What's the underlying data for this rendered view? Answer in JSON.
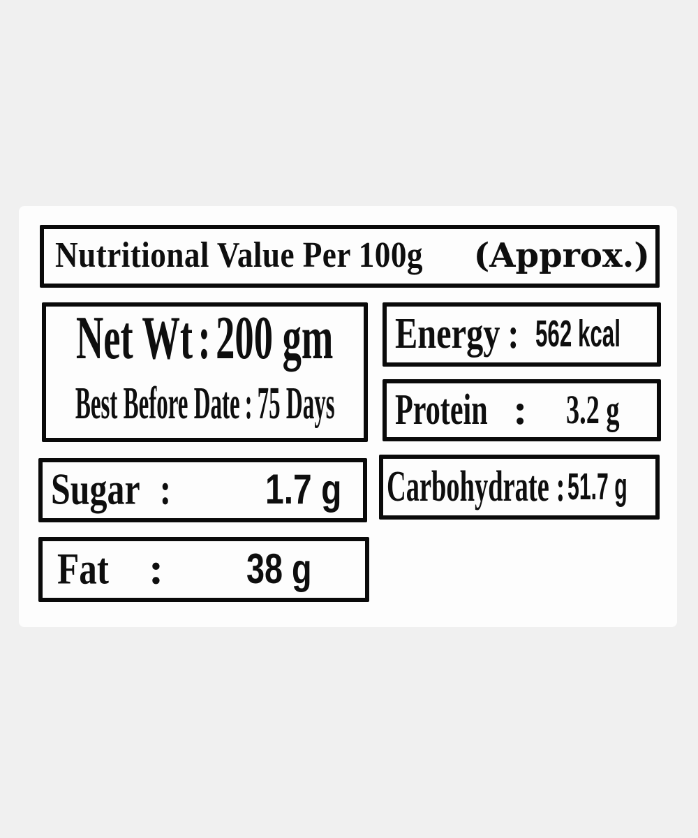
{
  "page": {
    "background_color": "#f0f0f0",
    "card_color": "#fdfdfd",
    "line_color": "#0a0a0a",
    "text_color": "#0e0e0e"
  },
  "header": {
    "title": "Nutritional Value Per 100g",
    "approx": "(Approx.)"
  },
  "symbols": {
    "colon": ":"
  },
  "product": {
    "net_wt_label": "Net Wt",
    "net_wt_value": "200 gm",
    "best_before_label": "Best Before Date",
    "best_before_value": "75 Days"
  },
  "nutrients": {
    "energy": {
      "label": "Energy",
      "value": "562 kcal"
    },
    "protein": {
      "label": "Protein",
      "value": "3.2 g"
    },
    "carbohydrate": {
      "label": "Carbohydrate",
      "value": "51.7 g"
    },
    "sugar": {
      "label": "Sugar",
      "value": "1.7 g"
    },
    "fat": {
      "label": "Fat",
      "value": "38 g"
    }
  }
}
